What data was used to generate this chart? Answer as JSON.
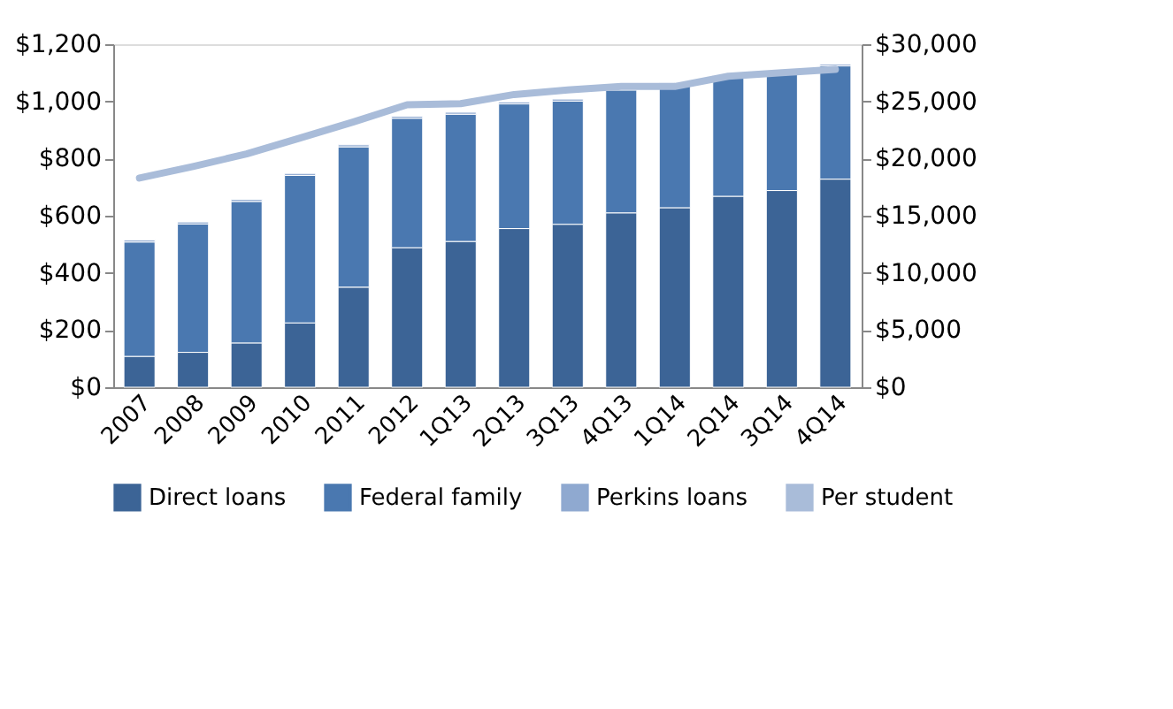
{
  "chart_data": {
    "type": "bar",
    "stacked": true,
    "categories": [
      "2007",
      "2008",
      "2009",
      "2010",
      "2011",
      "2012",
      "1Q13",
      "2Q13",
      "3Q13",
      "4Q13",
      "1Q14",
      "2Q14",
      "3Q14",
      "4Q14"
    ],
    "series": [
      {
        "name": "Direct loans",
        "color": "#3c6496",
        "values": [
          108,
          122,
          155,
          225,
          350,
          488,
          510,
          555,
          570,
          610,
          628,
          668,
          688,
          728
        ]
      },
      {
        "name": "Federal family",
        "color": "#4a78b0",
        "values": [
          400,
          449,
          495,
          516,
          491,
          453,
          445,
          436,
          431,
          429,
          431,
          416,
          416,
          396
        ]
      },
      {
        "name": "Perkins loans",
        "color": "#8fa9d0",
        "values": [
          7,
          7,
          7,
          7,
          7,
          7,
          7,
          7,
          7,
          null,
          6,
          6,
          null,
          6
        ]
      },
      {
        "name": "Per student",
        "type": "line",
        "axis": "y2",
        "color": "#a9bcd9",
        "values": [
          18300,
          19300,
          20400,
          21800,
          23200,
          24700,
          24800,
          25600,
          26000,
          26300,
          26300,
          27200,
          27500,
          27800
        ]
      }
    ],
    "ylim": [
      0,
      1200
    ],
    "yticks": [
      {
        "value": 0,
        "label": "$0"
      },
      {
        "value": 200,
        "label": "$200"
      },
      {
        "value": 400,
        "label": "$400"
      },
      {
        "value": 600,
        "label": "$600"
      },
      {
        "value": 800,
        "label": "$800"
      },
      {
        "value": 1000,
        "label": "$1,000"
      },
      {
        "value": 1200,
        "label": "$1,200"
      }
    ],
    "y2lim": [
      0,
      30000
    ],
    "y2ticks": [
      {
        "value": 0,
        "label": "$0"
      },
      {
        "value": 5000,
        "label": "$5,000"
      },
      {
        "value": 10000,
        "label": "$10,000"
      },
      {
        "value": 15000,
        "label": "$15,000"
      },
      {
        "value": 20000,
        "label": "$20,000"
      },
      {
        "value": 25000,
        "label": "$25,000"
      },
      {
        "value": 30000,
        "label": "$30,000"
      }
    ],
    "grid": false,
    "legend": "bottom"
  }
}
